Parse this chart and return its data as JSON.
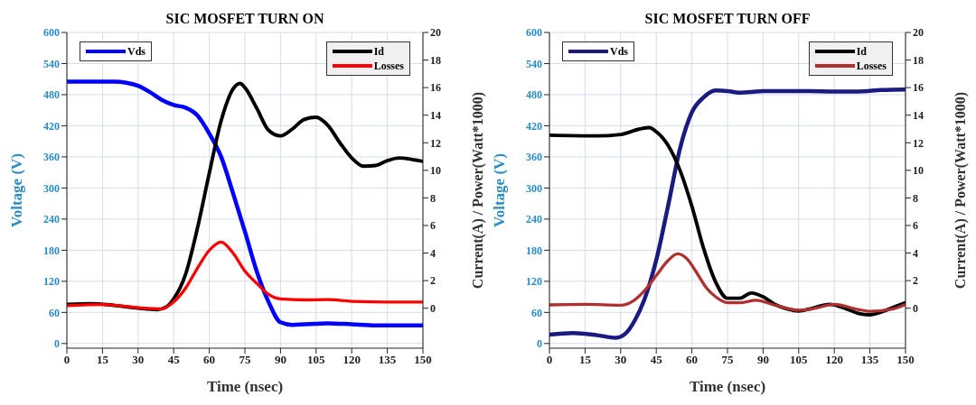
{
  "chart_data": [
    {
      "type": "line",
      "title": "SIC MOSFET TURN ON",
      "xlabel": "Time (nsec)",
      "ylabel": "Voltage (V)",
      "y2label": "Current(A)  /  Power(Watt*1000)",
      "xlim": [
        0,
        150
      ],
      "xticks": [
        0,
        15,
        30,
        45,
        60,
        75,
        90,
        105,
        120,
        135,
        150
      ],
      "ylim": [
        -9,
        600
      ],
      "yticks": [
        0,
        60,
        120,
        180,
        240,
        300,
        360,
        420,
        480,
        540,
        600
      ],
      "y2lim": [
        -2.9,
        20
      ],
      "y2ticks": [
        0,
        2,
        4,
        6,
        8,
        10,
        12,
        14,
        16,
        18,
        20
      ],
      "grid": true,
      "legend": "top left",
      "marker": "none",
      "line_style": "solid",
      "series": [
        {
          "name": "Vds",
          "color": "#0000ff",
          "x": [
            0,
            10,
            20,
            25,
            30,
            35,
            40,
            45,
            50,
            55,
            60,
            65,
            70,
            75,
            80,
            85,
            90,
            95,
            100,
            105,
            110,
            120,
            130,
            140,
            150
          ],
          "values": [
            505,
            505,
            505,
            503,
            497,
            485,
            470,
            460,
            455,
            440,
            405,
            360,
            290,
            216,
            139,
            80,
            41,
            36,
            37,
            38,
            39,
            37,
            35,
            35,
            35
          ]
        },
        {
          "name": "Id",
          "color": "#000000",
          "axis": "y2",
          "x": [
            0,
            10,
            20,
            30,
            38,
            42,
            45,
            50,
            55,
            60,
            65,
            70,
            73,
            75,
            80,
            85,
            90,
            95,
            100,
            105,
            110,
            115,
            120,
            125,
            130,
            135,
            140,
            145,
            150
          ],
          "values": [
            0.27,
            0.33,
            0.2,
            0,
            -0.1,
            0.1,
            0.67,
            2.45,
            5.8,
            9.8,
            13.6,
            15.9,
            16.3,
            16,
            14.5,
            12.9,
            12.5,
            13,
            13.7,
            13.85,
            13.25,
            12,
            10.9,
            10.3,
            10.35,
            10.7,
            10.9,
            10.8,
            10.65
          ]
        },
        {
          "name": "Losses",
          "color": "#ff0000",
          "axis": "y2",
          "x": [
            0,
            15,
            30,
            40,
            45,
            50,
            55,
            60,
            65,
            70,
            75,
            80,
            85,
            90,
            100,
            110,
            120,
            135,
            150
          ],
          "values": [
            0.18,
            0.27,
            0.04,
            -0.04,
            0.45,
            1.45,
            2.9,
            4.2,
            4.8,
            4,
            2.7,
            1.8,
            1,
            0.67,
            0.6,
            0.62,
            0.5,
            0.45,
            0.45
          ]
        }
      ]
    },
    {
      "type": "line",
      "title": "SIC MOSFET TURN OFF",
      "xlabel": "Time (nsec)",
      "ylabel": "Voltage (V)",
      "y2label": "Current(A)  /  Power(Watt*1000)",
      "xlim": [
        0,
        150
      ],
      "xticks": [
        0,
        15,
        30,
        45,
        60,
        75,
        90,
        105,
        120,
        135,
        150
      ],
      "ylim": [
        -9,
        600
      ],
      "yticks": [
        0,
        60,
        120,
        180,
        240,
        300,
        360,
        420,
        480,
        540,
        600
      ],
      "y2lim": [
        -2.9,
        20
      ],
      "y2ticks": [
        0,
        2,
        4,
        6,
        8,
        10,
        12,
        14,
        16,
        18,
        20
      ],
      "grid": true,
      "legend": "top left",
      "marker": "none",
      "line_style": "solid",
      "series": [
        {
          "name": "Vds",
          "color": "#1a1a80",
          "x": [
            0,
            10,
            20,
            28,
            32,
            36,
            40,
            45,
            50,
            55,
            60,
            65,
            70,
            75,
            80,
            85,
            90,
            100,
            110,
            120,
            130,
            140,
            150
          ],
          "values": [
            17,
            20,
            16,
            11,
            19,
            45,
            85,
            161,
            266,
            376,
            446,
            475,
            488,
            487,
            484,
            485,
            487,
            487,
            487,
            486,
            486,
            489,
            490
          ]
        },
        {
          "name": "Id",
          "color": "#000000",
          "axis": "y2",
          "x": [
            0,
            20,
            30,
            38,
            42,
            45,
            50,
            55,
            60,
            65,
            70,
            75,
            80,
            85,
            90,
            95,
            100,
            105,
            110,
            118,
            125,
            130,
            135,
            140,
            145,
            150
          ],
          "values": [
            12.55,
            12.5,
            12.6,
            13,
            13.1,
            12.8,
            11.8,
            10,
            7.4,
            4.3,
            1.9,
            0.72,
            0.72,
            1.1,
            0.83,
            0.28,
            -0.04,
            -0.2,
            -0.04,
            0.28,
            -0.04,
            -0.37,
            -0.48,
            -0.26,
            0.07,
            0.4
          ]
        },
        {
          "name": "Losses",
          "color": "#b03030",
          "axis": "y2",
          "x": [
            0,
            15,
            30,
            35,
            40,
            45,
            50,
            54,
            58,
            62,
            66,
            70,
            75,
            80,
            87,
            95,
            105,
            112,
            120,
            130,
            135,
            145,
            150
          ],
          "values": [
            0.24,
            0.28,
            0.22,
            0.5,
            1.27,
            2.37,
            3.46,
            3.94,
            3.57,
            2.58,
            1.5,
            0.83,
            0.4,
            0.4,
            0.57,
            0.22,
            -0.15,
            0,
            0.28,
            -0.09,
            -0.22,
            -0.04,
            0.28
          ]
        }
      ]
    }
  ]
}
